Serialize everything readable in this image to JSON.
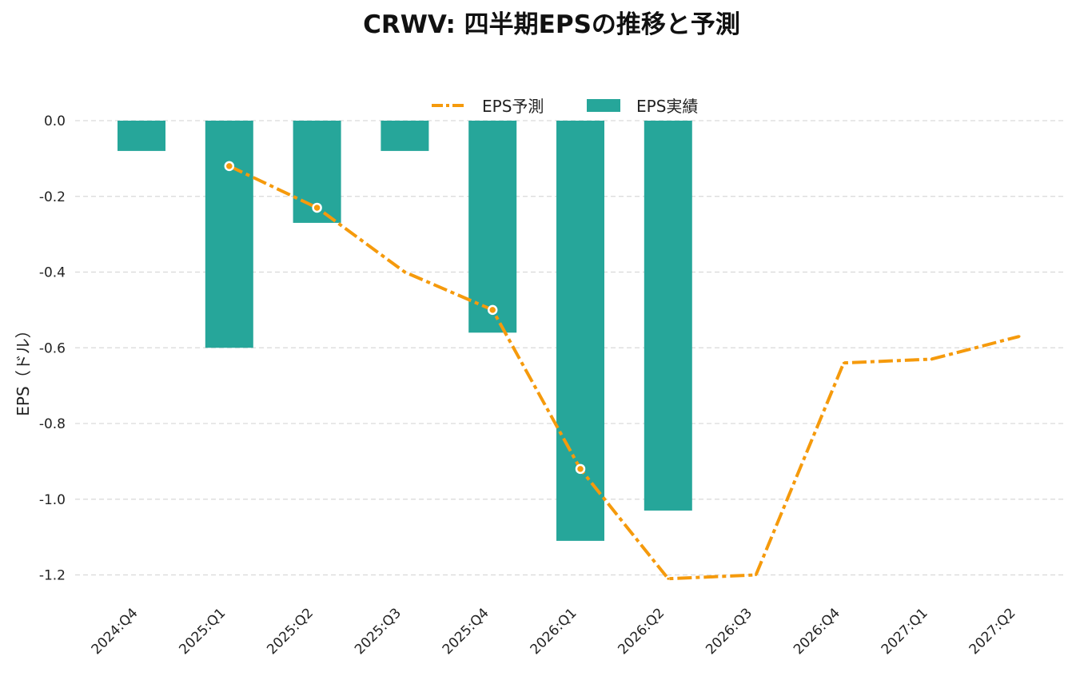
{
  "chart_data": {
    "type": "bar",
    "title": "CRWV: 四半期EPSの推移と予測",
    "xlabel": "",
    "ylabel": "EPS（ドル）",
    "categories": [
      "2024:Q4",
      "2025:Q1",
      "2025:Q2",
      "2025:Q3",
      "2025:Q4",
      "2026:Q1",
      "2026:Q2",
      "2026:Q3",
      "2026:Q4",
      "2027:Q1",
      "2027:Q2"
    ],
    "ylim": [
      -1.26,
      0.0
    ],
    "yticks": [
      "0.0",
      "-0.2",
      "-0.4",
      "-0.6",
      "-0.8",
      "-1.0",
      "-1.2"
    ],
    "ytick_values": [
      0.0,
      -0.2,
      -0.4,
      -0.6,
      -0.8,
      -1.0,
      -1.2
    ],
    "grid": true,
    "legend_position": "top-center",
    "series": [
      {
        "name": "EPS予測",
        "type": "line",
        "style": "dash-dot",
        "color": "#f59a0c",
        "values": [
          null,
          -0.12,
          -0.23,
          -0.4,
          -0.5,
          -0.92,
          -1.21,
          -1.2,
          -0.64,
          -0.63,
          -0.57
        ],
        "highlight_points": [
          1,
          2,
          4,
          5
        ]
      },
      {
        "name": "EPS実績",
        "type": "bar",
        "color": "#26a69a",
        "values": [
          -0.08,
          -0.6,
          -0.27,
          -0.08,
          -0.56,
          -1.11,
          -1.03,
          null,
          null,
          null,
          null
        ]
      }
    ]
  }
}
